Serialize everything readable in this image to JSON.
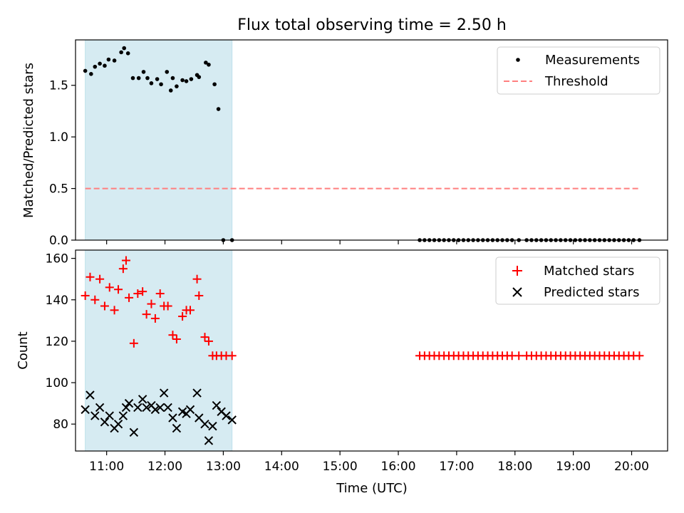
{
  "figure_title": "Flux total observing time = 2.50 h",
  "chart_data": [
    {
      "type": "scatter",
      "panel": "top",
      "ylabel": "Matched/Predicted stars",
      "xlabel": "",
      "xlim": [
        "10:28",
        "20:37"
      ],
      "ylim": [
        0,
        1.94
      ],
      "yticks": [
        0.0,
        0.5,
        1.0,
        1.5
      ],
      "ytick_labels": [
        "0.0",
        "0.5",
        "1.0",
        "1.5"
      ],
      "grid": false,
      "legend_placement": "top-right",
      "shaded_span": {
        "start": "10:38",
        "end": "13:09",
        "color": "#add8e6"
      },
      "series": [
        {
          "name": "Measurements",
          "marker": "dot",
          "color": "#000000",
          "x": [
            "10:38",
            "10:44",
            "10:48",
            "10:53",
            "10:58",
            "11:02",
            "11:08",
            "11:15",
            "11:18",
            "11:22",
            "11:27",
            "11:33",
            "11:38",
            "11:42",
            "11:46",
            "11:52",
            "11:56",
            "12:02",
            "12:06",
            "12:08",
            "12:12",
            "12:18",
            "12:22",
            "12:27",
            "12:33",
            "12:35",
            "12:42",
            "12:45",
            "12:51",
            "12:55",
            "13:00",
            "13:09",
            "16:22",
            "16:27",
            "16:32",
            "16:37",
            "16:42",
            "16:47",
            "16:52",
            "16:57",
            "17:02",
            "17:07",
            "17:12",
            "17:17",
            "17:22",
            "17:27",
            "17:32",
            "17:37",
            "17:42",
            "17:47",
            "17:52",
            "17:57",
            "18:04",
            "18:12",
            "18:17",
            "18:22",
            "18:27",
            "18:32",
            "18:37",
            "18:42",
            "18:47",
            "18:52",
            "18:57",
            "19:02",
            "19:07",
            "19:12",
            "19:17",
            "19:22",
            "19:27",
            "19:32",
            "19:37",
            "19:42",
            "19:47",
            "19:52",
            "19:57",
            "20:02",
            "20:08"
          ],
          "y": [
            1.64,
            1.61,
            1.68,
            1.71,
            1.69,
            1.75,
            1.74,
            1.82,
            1.86,
            1.81,
            1.57,
            1.57,
            1.63,
            1.57,
            1.52,
            1.56,
            1.51,
            1.63,
            1.45,
            1.57,
            1.49,
            1.55,
            1.54,
            1.56,
            1.6,
            1.58,
            1.72,
            1.7,
            1.51,
            1.27,
            0,
            0,
            0,
            0,
            0,
            0,
            0,
            0,
            0,
            0,
            0,
            0,
            0,
            0,
            0,
            0,
            0,
            0,
            0,
            0,
            0,
            0,
            0,
            0,
            0,
            0,
            0,
            0,
            0,
            0,
            0,
            0,
            0,
            0,
            0,
            0,
            0,
            0,
            0,
            0,
            0,
            0,
            0,
            0,
            0,
            0,
            0
          ]
        },
        {
          "name": "Threshold",
          "style": "dashed",
          "color": "#ff7f7f",
          "x": [
            "10:38",
            "20:08"
          ],
          "y": [
            0.5,
            0.5
          ]
        }
      ]
    },
    {
      "type": "scatter",
      "panel": "bottom",
      "ylabel": "Count",
      "xlabel": "Time (UTC)",
      "xlim": [
        "10:28",
        "20:37"
      ],
      "ylim": [
        67,
        164
      ],
      "yticks": [
        80,
        100,
        120,
        140,
        160
      ],
      "ytick_labels": [
        "80",
        "100",
        "120",
        "140",
        "160"
      ],
      "xticks": [
        "11:00",
        "12:00",
        "13:00",
        "14:00",
        "15:00",
        "16:00",
        "17:00",
        "18:00",
        "19:00",
        "20:00"
      ],
      "grid": false,
      "legend_placement": "top-right",
      "shaded_span": {
        "start": "10:38",
        "end": "13:09",
        "color": "#add8e6"
      },
      "series": [
        {
          "name": "Matched stars",
          "marker": "plus",
          "color": "#ff0000",
          "x": [
            "10:38",
            "10:43",
            "10:48",
            "10:53",
            "10:58",
            "11:03",
            "11:08",
            "11:12",
            "11:17",
            "11:20",
            "11:23",
            "11:28",
            "11:32",
            "11:37",
            "11:41",
            "11:46",
            "11:50",
            "11:55",
            "11:59",
            "12:03",
            "12:08",
            "12:12",
            "12:18",
            "12:22",
            "12:26",
            "12:33",
            "12:35",
            "12:41",
            "12:45",
            "12:49",
            "12:53",
            "12:58",
            "13:03",
            "13:09",
            "16:22",
            "16:27",
            "16:32",
            "16:37",
            "16:42",
            "16:47",
            "16:52",
            "16:57",
            "17:02",
            "17:07",
            "17:12",
            "17:17",
            "17:22",
            "17:27",
            "17:32",
            "17:37",
            "17:42",
            "17:47",
            "17:52",
            "17:57",
            "18:04",
            "18:12",
            "18:17",
            "18:22",
            "18:27",
            "18:32",
            "18:37",
            "18:42",
            "18:47",
            "18:52",
            "18:57",
            "19:02",
            "19:07",
            "19:12",
            "19:17",
            "19:22",
            "19:27",
            "19:32",
            "19:37",
            "19:42",
            "19:47",
            "19:52",
            "19:57",
            "20:02",
            "20:08"
          ],
          "y": [
            142,
            151,
            140,
            150,
            137,
            146,
            135,
            145,
            155,
            159,
            141,
            119,
            143,
            144,
            133,
            138,
            131,
            143,
            137,
            137,
            123,
            121,
            132,
            135,
            135,
            150,
            142,
            122,
            120,
            113,
            113,
            113,
            113,
            113,
            113,
            113,
            113,
            113,
            113,
            113,
            113,
            113,
            113,
            113,
            113,
            113,
            113,
            113,
            113,
            113,
            113,
            113,
            113,
            113,
            113,
            113,
            113,
            113,
            113,
            113,
            113,
            113,
            113,
            113,
            113,
            113,
            113,
            113,
            113,
            113,
            113,
            113,
            113,
            113,
            113,
            113,
            113,
            113,
            113
          ]
        },
        {
          "name": "Predicted stars",
          "marker": "x",
          "color": "#000000",
          "x": [
            "10:38",
            "10:43",
            "10:48",
            "10:53",
            "10:58",
            "11:03",
            "11:08",
            "11:12",
            "11:17",
            "11:20",
            "11:23",
            "11:28",
            "11:32",
            "11:37",
            "11:41",
            "11:46",
            "11:50",
            "11:55",
            "11:59",
            "12:03",
            "12:08",
            "12:12",
            "12:18",
            "12:22",
            "12:26",
            "12:33",
            "12:35",
            "12:41",
            "12:45",
            "12:49",
            "12:53",
            "12:58",
            "13:03",
            "13:09"
          ],
          "y": [
            87,
            94,
            84,
            88,
            81,
            84,
            78,
            80,
            84,
            88,
            90,
            76,
            88,
            92,
            88,
            89,
            87,
            88,
            95,
            88,
            83,
            78,
            86,
            85,
            87,
            95,
            83,
            80,
            72,
            79,
            89,
            86,
            84,
            82
          ]
        }
      ]
    }
  ]
}
